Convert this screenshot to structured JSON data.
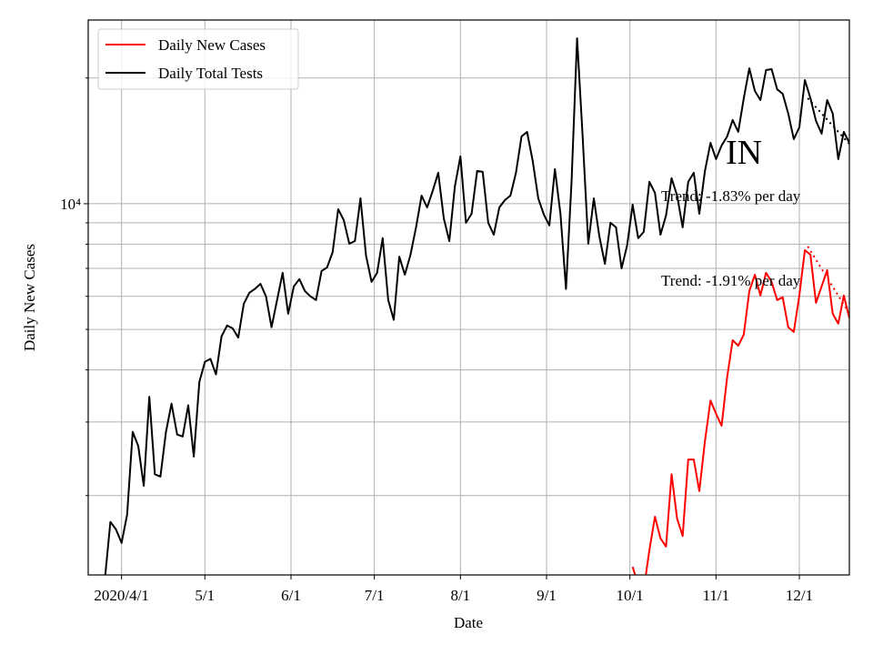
{
  "chart_data": {
    "type": "line",
    "x_label": "Date",
    "y_label": "Daily New Cases",
    "log_scale_y": true,
    "grid": true,
    "legend_corner": "upper left",
    "xlim": [
      "2020-03-20",
      "2020-12-19"
    ],
    "xticks": [
      {
        "value": "2020-04-01",
        "label": "2020/4/1"
      },
      {
        "value": "2020-05-01",
        "label": "5/1"
      },
      {
        "value": "2020-06-01",
        "label": "6/1"
      },
      {
        "value": "2020-07-01",
        "label": "7/1"
      },
      {
        "value": "2020-08-01",
        "label": "8/1"
      },
      {
        "value": "2020-09-01",
        "label": "9/1"
      },
      {
        "value": "2020-10-01",
        "label": "10/1"
      },
      {
        "value": "2020-11-01",
        "label": "11/1"
      },
      {
        "value": "2020-12-01",
        "label": "12/1"
      }
    ],
    "ylim": [
      1291,
      27540
    ],
    "yticks": [
      {
        "value": 10000,
        "label": "10⁴"
      }
    ],
    "yminor_ticks": [
      2000,
      3000,
      4000,
      5000,
      6000,
      7000,
      8000,
      9000,
      20000
    ],
    "x": [
      "2020-03-26",
      "2020-03-28",
      "2020-03-30",
      "2020-04-01",
      "2020-04-03",
      "2020-04-05",
      "2020-04-07",
      "2020-04-09",
      "2020-04-11",
      "2020-04-13",
      "2020-04-15",
      "2020-04-17",
      "2020-04-19",
      "2020-04-21",
      "2020-04-23",
      "2020-04-25",
      "2020-04-27",
      "2020-04-29",
      "2020-05-01",
      "2020-05-03",
      "2020-05-05",
      "2020-05-07",
      "2020-05-09",
      "2020-05-11",
      "2020-05-13",
      "2020-05-15",
      "2020-05-17",
      "2020-05-19",
      "2020-05-21",
      "2020-05-23",
      "2020-05-25",
      "2020-05-27",
      "2020-05-29",
      "2020-05-31",
      "2020-06-02",
      "2020-06-04",
      "2020-06-06",
      "2020-06-08",
      "2020-06-10",
      "2020-06-12",
      "2020-06-14",
      "2020-06-16",
      "2020-06-18",
      "2020-06-20",
      "2020-06-22",
      "2020-06-24",
      "2020-06-26",
      "2020-06-28",
      "2020-06-30",
      "2020-07-02",
      "2020-07-04",
      "2020-07-06",
      "2020-07-08",
      "2020-07-10",
      "2020-07-12",
      "2020-07-14",
      "2020-07-16",
      "2020-07-18",
      "2020-07-20",
      "2020-07-22",
      "2020-07-24",
      "2020-07-26",
      "2020-07-28",
      "2020-07-30",
      "2020-08-01",
      "2020-08-03",
      "2020-08-05",
      "2020-08-07",
      "2020-08-09",
      "2020-08-11",
      "2020-08-13",
      "2020-08-15",
      "2020-08-17",
      "2020-08-19",
      "2020-08-21",
      "2020-08-23",
      "2020-08-25",
      "2020-08-27",
      "2020-08-29",
      "2020-08-31",
      "2020-09-02",
      "2020-09-04",
      "2020-09-06",
      "2020-09-08",
      "2020-09-10",
      "2020-09-12",
      "2020-09-14",
      "2020-09-16",
      "2020-09-18",
      "2020-09-20",
      "2020-09-22",
      "2020-09-24",
      "2020-09-26",
      "2020-09-28",
      "2020-09-30",
      "2020-10-02",
      "2020-10-04",
      "2020-10-06",
      "2020-10-08",
      "2020-10-10",
      "2020-10-12",
      "2020-10-14",
      "2020-10-16",
      "2020-10-18",
      "2020-10-20",
      "2020-10-22",
      "2020-10-24",
      "2020-10-26",
      "2020-10-28",
      "2020-10-30",
      "2020-11-01",
      "2020-11-03",
      "2020-11-05",
      "2020-11-07",
      "2020-11-09",
      "2020-11-11",
      "2020-11-13",
      "2020-11-15",
      "2020-11-17",
      "2020-11-19",
      "2020-11-21",
      "2020-11-23",
      "2020-11-25",
      "2020-11-27",
      "2020-11-29",
      "2020-12-01",
      "2020-12-03",
      "2020-12-05",
      "2020-12-07",
      "2020-12-09",
      "2020-12-11",
      "2020-12-13",
      "2020-12-15",
      "2020-12-17",
      "2020-12-19"
    ],
    "series": [
      {
        "name": "Daily New Cases",
        "color": "#ff0000",
        "values": [
          null,
          null,
          null,
          null,
          null,
          null,
          null,
          null,
          null,
          null,
          null,
          null,
          null,
          null,
          null,
          null,
          null,
          null,
          null,
          null,
          null,
          null,
          null,
          null,
          null,
          null,
          null,
          null,
          null,
          null,
          null,
          null,
          null,
          null,
          null,
          null,
          null,
          null,
          null,
          null,
          null,
          null,
          null,
          null,
          null,
          null,
          null,
          null,
          null,
          null,
          null,
          null,
          null,
          null,
          null,
          null,
          null,
          null,
          null,
          null,
          null,
          null,
          null,
          null,
          null,
          null,
          null,
          null,
          null,
          null,
          null,
          null,
          null,
          null,
          null,
          null,
          null,
          null,
          null,
          null,
          null,
          null,
          null,
          null,
          null,
          null,
          null,
          null,
          null,
          null,
          null,
          null,
          null,
          null,
          null,
          1350,
          1220,
          1190,
          1480,
          1780,
          1580,
          1510,
          2250,
          1760,
          1600,
          2440,
          2440,
          2050,
          2700,
          3380,
          3140,
          2940,
          3840,
          4710,
          4570,
          4860,
          6180,
          6760,
          6030,
          6830,
          6500,
          5880,
          5970,
          5060,
          4930,
          6030,
          7740,
          7550,
          5790,
          6340,
          6930,
          5450,
          5160,
          6030,
          5320
        ]
      },
      {
        "name": "Daily Total Tests",
        "color": "#000000",
        "values": [
          1260,
          1730,
          1660,
          1540,
          1800,
          2840,
          2630,
          2110,
          3450,
          2250,
          2220,
          2840,
          3320,
          2800,
          2770,
          3290,
          2480,
          3740,
          4180,
          4250,
          3900,
          4810,
          5110,
          5030,
          4780,
          5760,
          6120,
          6250,
          6430,
          6000,
          5060,
          5880,
          6830,
          5450,
          6340,
          6600,
          6180,
          6000,
          5880,
          6900,
          7040,
          7660,
          9700,
          9140,
          8020,
          8140,
          10300,
          7510,
          6500,
          6830,
          8270,
          5880,
          5270,
          7470,
          6760,
          7550,
          8780,
          10460,
          9800,
          10730,
          11860,
          9230,
          8140,
          11000,
          12980,
          9000,
          9460,
          11980,
          11920,
          9000,
          8430,
          9800,
          10200,
          10460,
          11860,
          14490,
          14860,
          12660,
          10300,
          9420,
          8870,
          12100,
          9460,
          6250,
          11280,
          24900,
          14490,
          8020,
          10300,
          8350,
          7180,
          9000,
          8780,
          7000,
          7940,
          9950,
          8270,
          8560,
          11280,
          10620,
          8430,
          9370,
          11510,
          10460,
          8780,
          11280,
          11860,
          9460,
          11980,
          13990,
          12790,
          13780,
          14490,
          15870,
          14860,
          17890,
          21100,
          18620,
          17710,
          20900,
          21000,
          18790,
          18330,
          16440,
          14280,
          15240,
          19780,
          17890,
          15790,
          14720,
          17710,
          16440,
          12790,
          14860,
          13990
        ]
      }
    ],
    "trend_lines": [
      {
        "x": [
          "2020-12-04",
          "2020-12-19"
        ],
        "values": [
          17900,
          13900
        ],
        "color": "#000000"
      },
      {
        "x": [
          "2020-12-04",
          "2020-12-18"
        ],
        "values": [
          7900,
          5600
        ],
        "color": "#ff0000"
      }
    ],
    "annotations": [
      {
        "text": "IN"
      },
      {
        "text": "Trend: -1.83% per day"
      },
      {
        "text": "Trend: -1.91% per day"
      }
    ]
  }
}
